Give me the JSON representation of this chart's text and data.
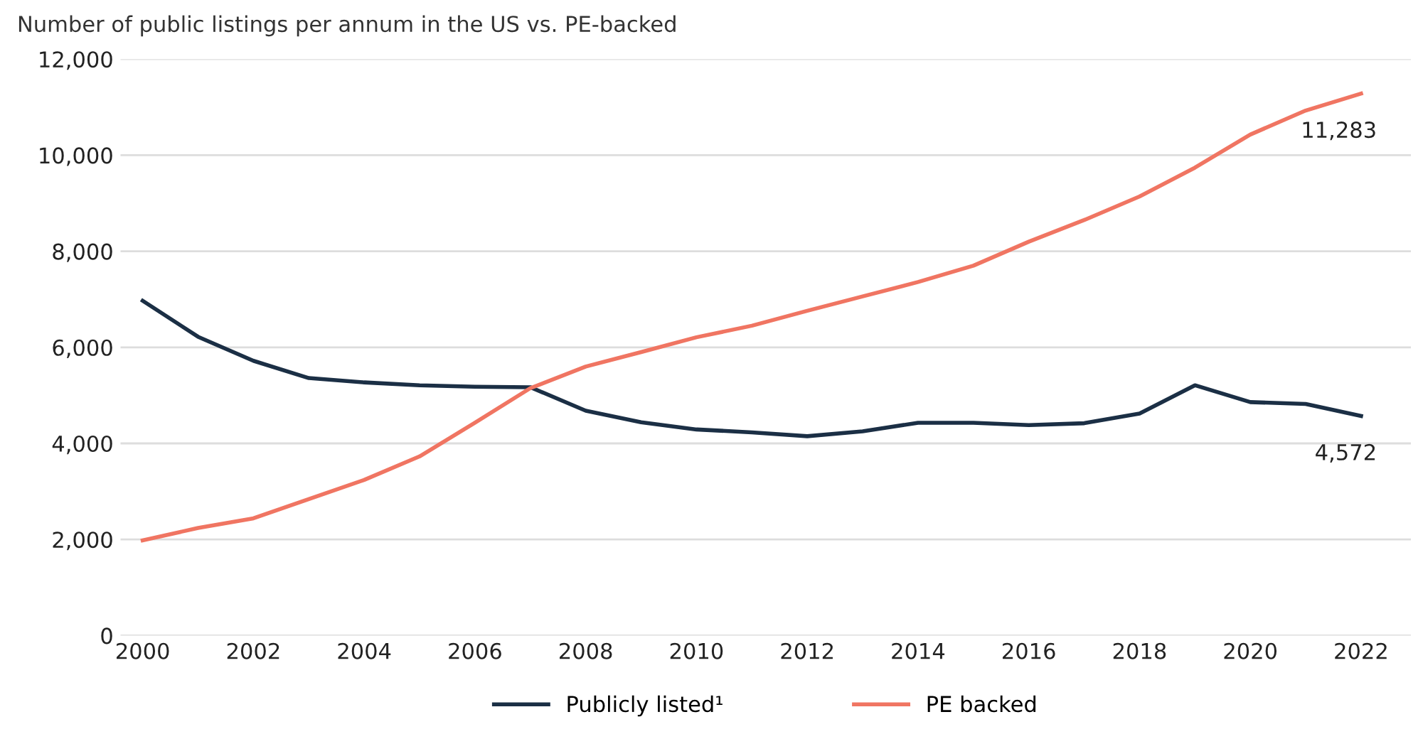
{
  "chart_data": {
    "type": "line",
    "title": "Number of public listings per annum in the US vs. PE-backed",
    "x": [
      2000,
      2001,
      2002,
      2003,
      2004,
      2005,
      2006,
      2007,
      2008,
      2009,
      2010,
      2011,
      2012,
      2013,
      2014,
      2015,
      2016,
      2017,
      2018,
      2019,
      2020,
      2021,
      2022
    ],
    "series": [
      {
        "name": "Publicly listed¹",
        "color": "#1b2f45",
        "values": [
          6970,
          6220,
          5720,
          5360,
          5270,
          5210,
          5180,
          5170,
          4680,
          4440,
          4290,
          4230,
          4150,
          4250,
          4430,
          4430,
          4380,
          4420,
          4620,
          5210,
          4860,
          4820,
          4572
        ]
      },
      {
        "name": "PE backed",
        "color": "#f07562",
        "values": [
          1980,
          2240,
          2440,
          2840,
          3240,
          3730,
          4430,
          5150,
          5600,
          5900,
          6210,
          6450,
          6760,
          7060,
          7360,
          7700,
          8200,
          8650,
          9140,
          9740,
          10430,
          10930,
          11283
        ]
      }
    ],
    "xlim": [
      1999.6,
      2022.9
    ],
    "xticks": [
      2000,
      2002,
      2004,
      2006,
      2008,
      2010,
      2012,
      2014,
      2016,
      2018,
      2020,
      2022
    ],
    "ylim": [
      0,
      12000
    ],
    "yticks": [
      {
        "value": 0,
        "label": "0"
      },
      {
        "value": 2000,
        "label": "2,000"
      },
      {
        "value": 4000,
        "label": "4,000"
      },
      {
        "value": 6000,
        "label": "6,000"
      },
      {
        "value": 8000,
        "label": "8,000"
      },
      {
        "value": 10000,
        "label": "10,000"
      },
      {
        "value": 12000,
        "label": "12,000"
      }
    ],
    "annotations": [
      {
        "text": "11,283",
        "x": 2022,
        "y": 11283
      },
      {
        "text": "4,572",
        "x": 2022,
        "y": 4572
      }
    ],
    "grid": "y",
    "legend": "bottom",
    "marker": "none",
    "line_style": "solid"
  }
}
